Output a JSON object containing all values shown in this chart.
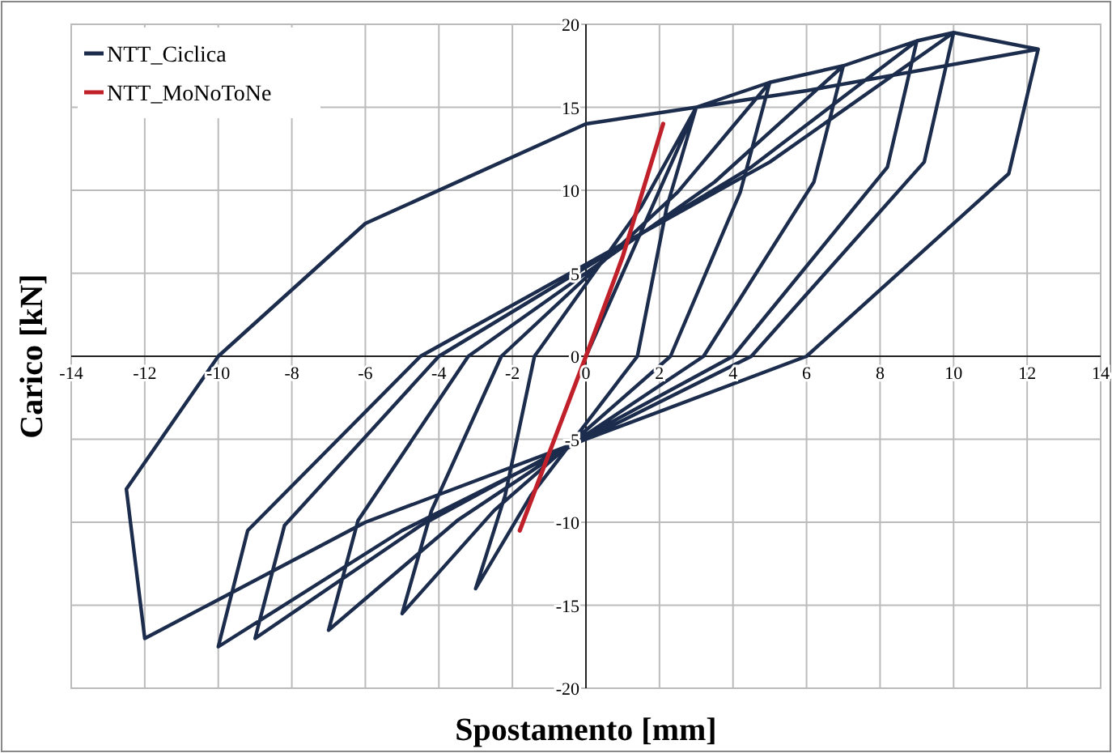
{
  "chart_data": {
    "type": "line",
    "xlabel": "Spostamento [mm]",
    "ylabel": "Carico [kN]",
    "xlim": [
      -14,
      14
    ],
    "xticks": [
      -14,
      -12,
      -10,
      -8,
      -6,
      -4,
      -2,
      0,
      2,
      4,
      6,
      8,
      10,
      12,
      14
    ],
    "ylim": [
      -20,
      20
    ],
    "yticks": [
      -20,
      -15,
      -10,
      -5,
      0,
      5,
      10,
      15,
      20
    ],
    "grid": true,
    "legend": "top left",
    "marker": "none",
    "line_style": "solid",
    "series": [
      {
        "name": "NTT_Ciclica",
        "color": "#1c2c4c",
        "x": [
          0,
          3,
          2.2,
          1.4,
          -1.5,
          -3,
          -2.2,
          -1.4,
          1.5,
          3,
          5,
          4.2,
          2.3,
          -2.5,
          -5,
          -4.2,
          -2.3,
          2.5,
          5,
          7,
          6.2,
          3.2,
          -3.5,
          -7,
          -6.2,
          -3.2,
          3.5,
          7,
          9,
          8.2,
          4,
          -4.5,
          -9,
          -8.2,
          -4,
          4.5,
          9,
          10,
          9.2,
          4.5,
          -5,
          -10,
          -9.2,
          -4.5,
          5,
          10,
          12.3,
          11.5,
          6,
          -6,
          -12,
          -12.5,
          -10,
          -6,
          0,
          6,
          12.3
        ],
        "values": [
          0,
          15,
          9,
          0,
          -8.4,
          -14,
          -8.4,
          0,
          9,
          15,
          16.5,
          9.9,
          0,
          -9.3,
          -15.5,
          -9.3,
          0,
          9.9,
          16.5,
          17.5,
          10.5,
          0,
          -9.9,
          -16.5,
          -9.9,
          0,
          10.5,
          17.5,
          19,
          11.4,
          0,
          -10.2,
          -17,
          -10.2,
          0,
          11.4,
          19,
          19.5,
          11.7,
          0,
          -10.5,
          -17.5,
          -10.5,
          0,
          11.7,
          19.5,
          18.5,
          11,
          0,
          -10,
          -17,
          -8,
          0,
          8,
          14,
          16,
          18.5
        ]
      },
      {
        "name": "NTT_MoNoToNe",
        "color": "#c0202a",
        "x": [
          -1.8,
          0,
          1,
          2.1
        ],
        "values": [
          -10.5,
          0,
          6,
          14
        ]
      }
    ]
  }
}
